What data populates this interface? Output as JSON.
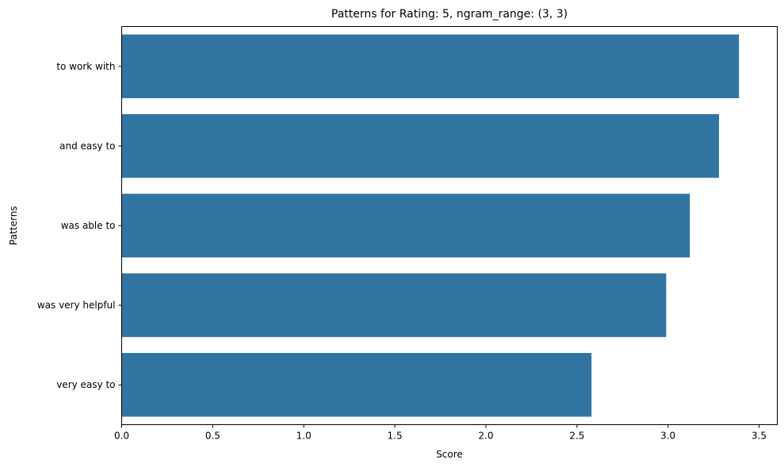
{
  "chart_data": {
    "type": "bar",
    "orientation": "horizontal",
    "title": "Patterns for Rating: 5, ngram_range: (3, 3)",
    "xlabel": "Score",
    "ylabel": "Patterns",
    "categories": [
      "to work with",
      "and easy to",
      "was able to",
      "was very helpful",
      "very easy to"
    ],
    "values": [
      3.39,
      3.28,
      3.12,
      2.99,
      2.58
    ],
    "xlim": [
      0,
      3.6
    ],
    "xticks": [
      "0.0",
      "0.5",
      "1.0",
      "1.5",
      "2.0",
      "2.5",
      "3.0",
      "3.5"
    ],
    "bar_color": "#3274a1",
    "grid": false,
    "legend": "none"
  }
}
